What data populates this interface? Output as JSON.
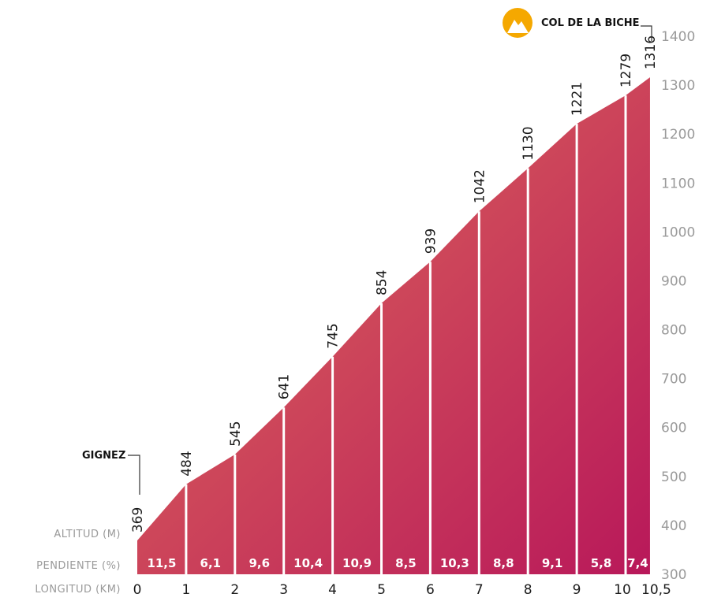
{
  "chart_data": {
    "type": "area",
    "xlabel": "LONGITUD (KM)",
    "ylabel": "ALTITUD (M)",
    "grade_label": "PENDIENTE (%)",
    "start_name": "GIGNEZ",
    "summit_name": "COL DE LA BICHE",
    "ylim": [
      300,
      1400
    ],
    "y_ticks": [
      "1400",
      "1300",
      "1200",
      "1100",
      "1000",
      "900",
      "800",
      "700",
      "600",
      "500",
      "400",
      "300"
    ],
    "x": [
      0,
      1,
      2,
      3,
      4,
      5,
      6,
      7,
      8,
      9,
      10,
      10.5
    ],
    "x_tick_labels": [
      "0",
      "1",
      "2",
      "3",
      "4",
      "5",
      "6",
      "7",
      "8",
      "9",
      "10",
      "10,5"
    ],
    "altitudes": [
      369,
      484,
      545,
      641,
      745,
      854,
      939,
      1042,
      1130,
      1221,
      1279,
      1316
    ],
    "altitude_labels": [
      "369",
      "484",
      "545",
      "641",
      "745",
      "854",
      "939",
      "1042",
      "1130",
      "1221",
      "1279",
      "1316"
    ],
    "gradients": [
      11.5,
      6.1,
      9.6,
      10.4,
      10.9,
      8.5,
      10.3,
      8.8,
      9.1,
      5.8,
      7.4
    ],
    "gradient_labels": [
      "11,5",
      "6,1",
      "9,6",
      "10,4",
      "10,9",
      "8,5",
      "10,3",
      "8,8",
      "9,1",
      "5,8",
      "7,4"
    ],
    "colors": {
      "fill_start": "#e0705a",
      "fill_end": "#b8185a",
      "separator": "#ffffff",
      "summit_icon": "#f5a800",
      "axis_text": "#9a9a9a"
    },
    "icons": {
      "summit": "mountain-icon"
    }
  }
}
